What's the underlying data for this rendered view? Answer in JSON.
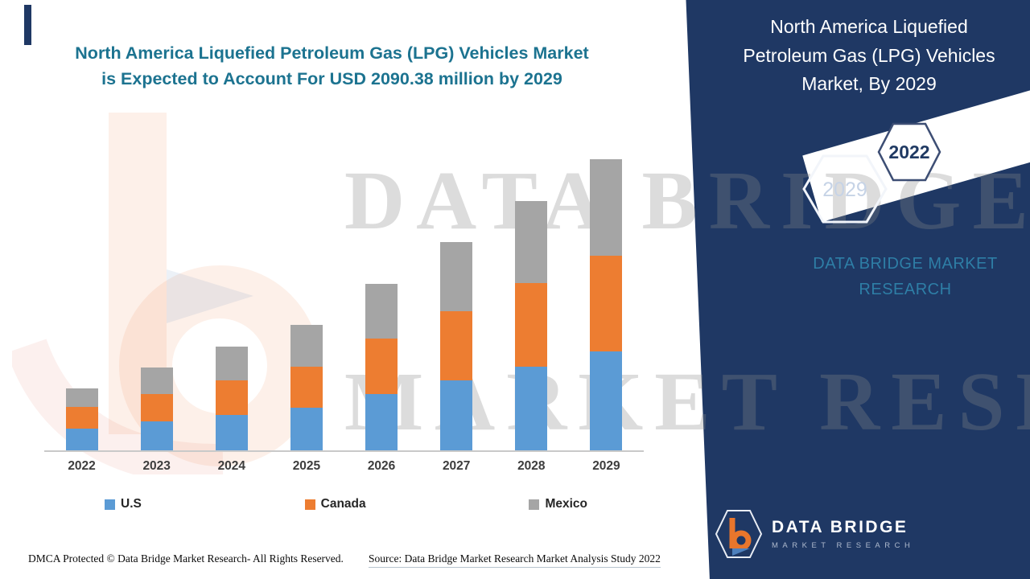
{
  "title": {
    "line1": "North America Liquefied Petroleum Gas (LPG) Vehicles Market",
    "line2": "is Expected to Account For USD 2090.38 million by 2029"
  },
  "watermark": {
    "line1": "DATA BRIDGE",
    "line2": "MARKET RESEARCH"
  },
  "chart_data": {
    "type": "bar",
    "stacked": true,
    "title": "North America Liquefied Petroleum Gas (LPG) Vehicles Market is Expected to Account For USD 2090.38 million by 2029",
    "unit": "USD million",
    "categories": [
      "2022",
      "2023",
      "2024",
      "2025",
      "2026",
      "2027",
      "2028",
      "2029"
    ],
    "series": [
      {
        "name": "U.S",
        "color": "#5B9BD5",
        "values": [
          155,
          207,
          254,
          306,
          404,
          502,
          600,
          710
        ]
      },
      {
        "name": "Canada",
        "color": "#ED7D31",
        "values": [
          160,
          196,
          248,
          294,
          398,
          497,
          601,
          687
        ]
      },
      {
        "name": "Mexico",
        "color": "#A5A5A5",
        "values": [
          133,
          190,
          242,
          299,
          393,
          496,
          588,
          693.38
        ]
      }
    ],
    "ylim": [
      0,
      2090.38
    ],
    "xlabel": "",
    "ylabel": "",
    "grid": false,
    "legend_position": "bottom",
    "y_axis_visible": false
  },
  "side_panel": {
    "heading": "North America Liquefied Petroleum Gas (LPG) Vehicles Market, By 2029",
    "hexagon_back_label": "2029",
    "hexagon_front_label": "2022",
    "brand_line1": "DATA BRIDGE MARKET",
    "brand_line2": "RESEARCH"
  },
  "logo": {
    "name": "DATA BRIDGE",
    "subtitle": "MARKET RESEARCH"
  },
  "footer": {
    "dmca": "DMCA Protected © Data Bridge Market Research- All Rights Reserved.",
    "source": "Source: Data Bridge Market Research Market Analysis Study 2022"
  },
  "colors": {
    "navy": "#1F3864",
    "title_teal": "#1C7390",
    "brand_teal": "#2E7EA6",
    "us": "#5B9BD5",
    "canada": "#ED7D31",
    "mexico": "#A5A5A5"
  }
}
